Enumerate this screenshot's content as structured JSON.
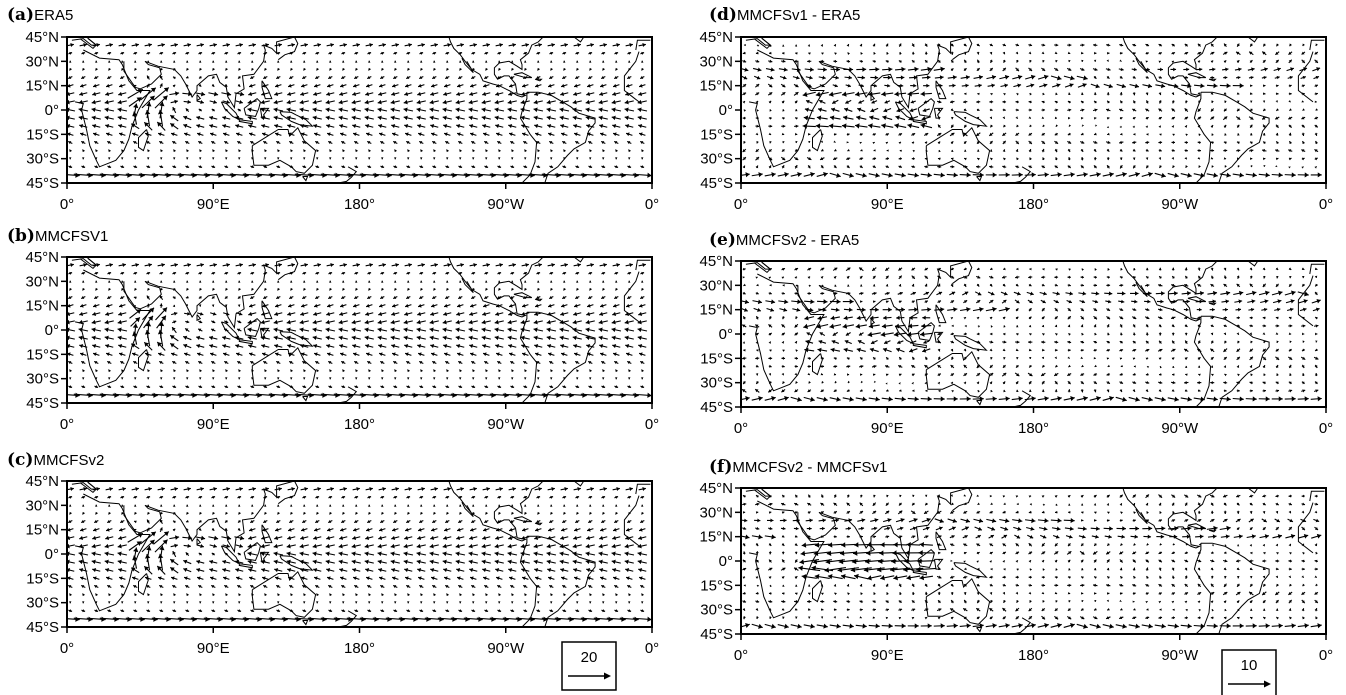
{
  "panels": [
    {
      "letter": "(a)",
      "name": "ERA5",
      "kind": "mean"
    },
    {
      "letter": "(b)",
      "name": "MMCFSV1",
      "kind": "mean"
    },
    {
      "letter": "(c)",
      "name": "MMCFSv2",
      "kind": "mean"
    },
    {
      "letter": "(d)",
      "name": "MMCFSv1 - ERA5",
      "kind": "diff"
    },
    {
      "letter": "(e)",
      "name": "MMCFSv2 - ERA5",
      "kind": "diff"
    },
    {
      "letter": "(f)",
      "name": "MMCFSv2 - MMCFSv1",
      "kind": "diff"
    }
  ],
  "lat_ticks": [
    "45°N",
    "30°N",
    "15°N",
    "0°",
    "15°S",
    "30°S",
    "45°S"
  ],
  "lon_ticks": [
    "0°",
    "90°E",
    "180°",
    "90°W",
    "0°"
  ],
  "reference_vectors": [
    {
      "label": "20",
      "column": "left"
    },
    {
      "label": "10",
      "column": "right"
    }
  ],
  "colors": {
    "ink": "#000000",
    "background": "#ffffff"
  },
  "icons": {
    "vector": "arrow-glyph",
    "coastline": "coastline-outline"
  }
}
